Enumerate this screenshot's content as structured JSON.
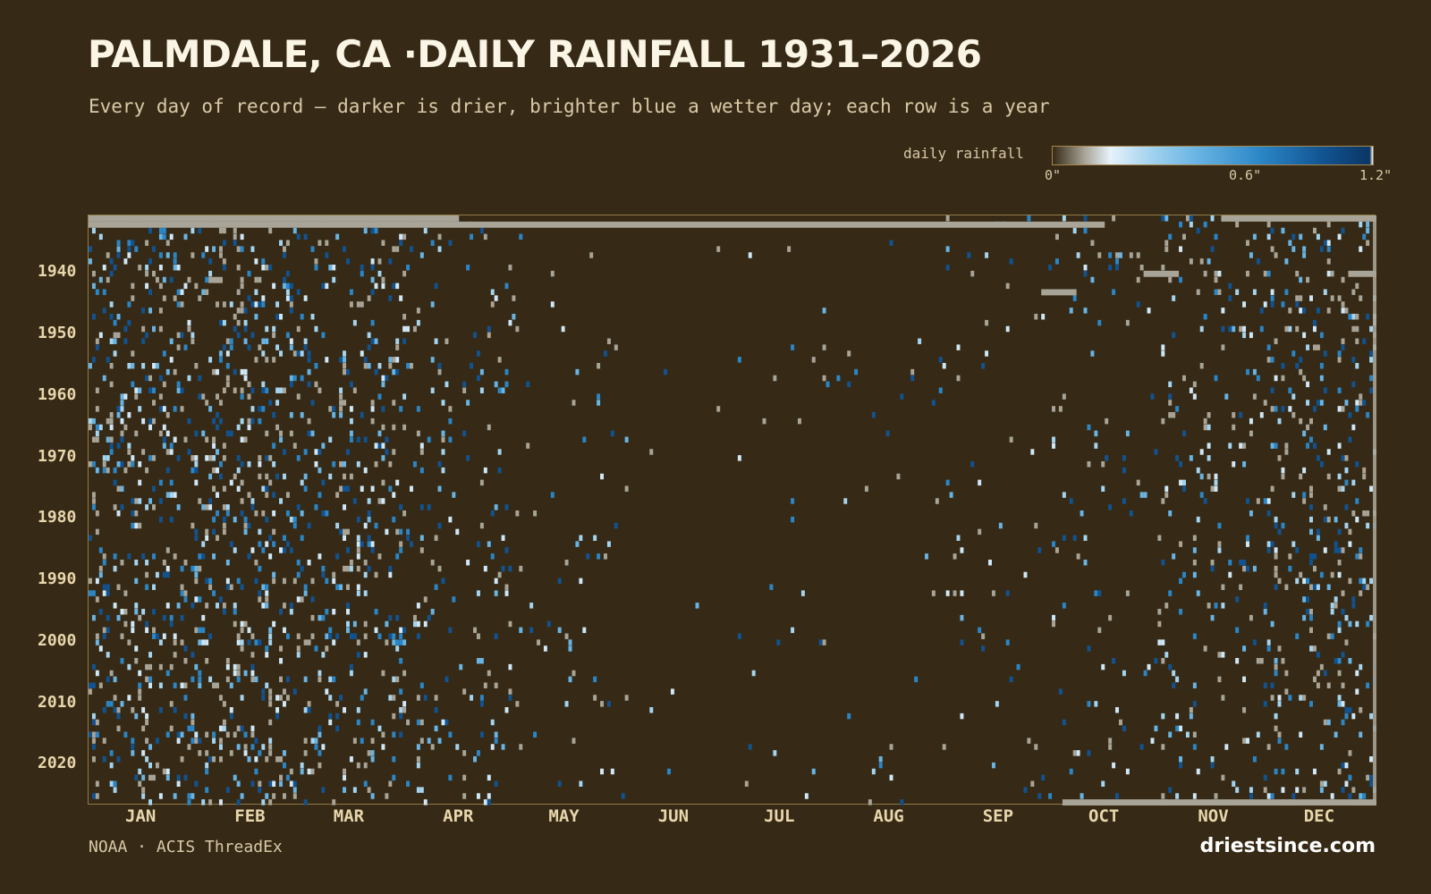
{
  "title": "PALMDALE, CA ·DAILY RAINFALL 1931–2026",
  "subtitle": "Every day of record — darker is drier, brighter blue a wetter day; each row is a year",
  "legend": {
    "label": "daily rainfall",
    "ticks": [
      "0\"",
      "0.6\"",
      "1.2\""
    ],
    "colors": [
      "#362a16",
      "#a8a497",
      "#e7f2fb",
      "#a5d4ef",
      "#69b4e3",
      "#2b86c6",
      "#115290",
      "#0b3664"
    ]
  },
  "source": "NOAA · ACIS ThreadEx",
  "brand": "driestsince.com",
  "colors": {
    "background": "#362a16",
    "missing": "#a8a497",
    "text": "#e8d6ac"
  },
  "chart_data": {
    "type": "heatmap",
    "title": "PALMDALE, CA ·DAILY RAINFALL 1931–2026",
    "x_unit": "day of year",
    "y_unit": "year",
    "year_range": [
      1931,
      2026
    ],
    "value_range_in": [
      0,
      1.2
    ],
    "y_tick_labels": [
      "1940",
      "1950",
      "1960",
      "1970",
      "1980",
      "1990",
      "2000",
      "2010",
      "2020"
    ],
    "x_tick_labels": [
      "JAN",
      "FEB",
      "MAR",
      "APR",
      "MAY",
      "JUN",
      "JUL",
      "AUG",
      "SEP",
      "OCT",
      "NOV",
      "DEC"
    ],
    "monthly_wet_day_probability": [
      0.155,
      0.16,
      0.13,
      0.06,
      0.022,
      0.004,
      0.008,
      0.014,
      0.02,
      0.035,
      0.07,
      0.12
    ],
    "missing_segments": [
      {
        "year": 1931,
        "start_day": 1,
        "end_day": 105
      },
      {
        "year": 1931,
        "start_day": 322,
        "end_day": 365
      },
      {
        "year": 1932,
        "start_day": 1,
        "end_day": 288
      },
      {
        "year": 1941,
        "start_day": 35,
        "end_day": 38
      },
      {
        "year": 1940,
        "start_day": 358,
        "end_day": 365
      },
      {
        "year": 1940,
        "start_day": 300,
        "end_day": 309
      },
      {
        "year": 1943,
        "start_day": 271,
        "end_day": 280
      },
      {
        "year": 2026,
        "start_day": 277,
        "end_day": 365
      }
    ]
  }
}
